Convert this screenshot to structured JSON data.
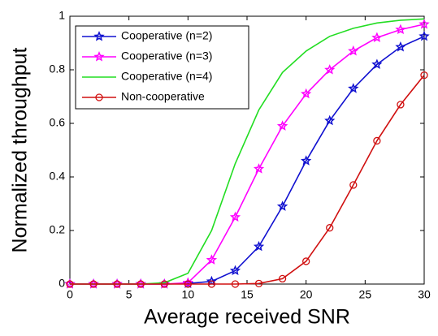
{
  "chart_data": {
    "type": "line",
    "xlabel": "Average received SNR",
    "ylabel": "Normalized throughput",
    "x": [
      0,
      2,
      4,
      6,
      8,
      10,
      12,
      14,
      16,
      18,
      20,
      22,
      24,
      26,
      28,
      30
    ],
    "series": [
      {
        "name": "Cooperative (n=2)",
        "color": "#1010d0",
        "marker": "star",
        "values": [
          0,
          0,
          0,
          0,
          0,
          0.002,
          0.01,
          0.05,
          0.14,
          0.29,
          0.46,
          0.61,
          0.73,
          0.82,
          0.885,
          0.925
        ]
      },
      {
        "name": "Cooperative (n=3)",
        "color": "#ff00ff",
        "marker": "star",
        "values": [
          0,
          0,
          0,
          0,
          0,
          0.005,
          0.09,
          0.25,
          0.43,
          0.59,
          0.71,
          0.8,
          0.87,
          0.92,
          0.95,
          0.97
        ]
      },
      {
        "name": "Cooperative (n=4)",
        "color": "#22dd22",
        "marker": "none",
        "values": [
          0,
          0,
          0,
          0,
          0.005,
          0.04,
          0.2,
          0.45,
          0.65,
          0.79,
          0.87,
          0.925,
          0.955,
          0.975,
          0.985,
          0.99
        ]
      },
      {
        "name": "Non-cooperative",
        "color": "#d01010",
        "marker": "circle",
        "values": [
          0,
          0,
          0,
          0,
          0,
          0,
          0,
          0,
          0.002,
          0.02,
          0.085,
          0.21,
          0.37,
          0.535,
          0.67,
          0.78
        ]
      }
    ],
    "xlim": [
      0,
      30
    ],
    "ylim": [
      0,
      1
    ],
    "xticks": [
      0,
      5,
      10,
      15,
      20,
      25,
      30
    ],
    "yticks": [
      0,
      0.2,
      0.4,
      0.6,
      0.8,
      1
    ],
    "legend": "upper-left"
  }
}
